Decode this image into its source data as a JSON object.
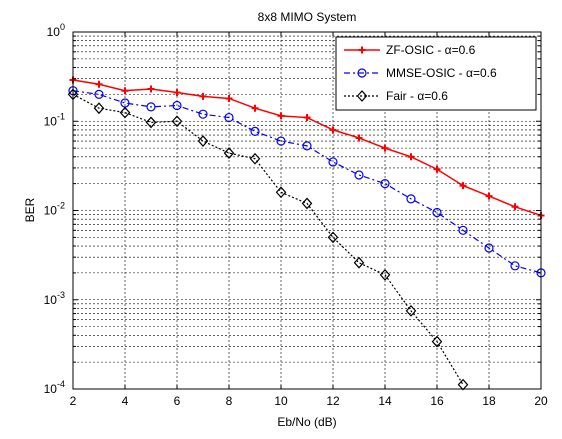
{
  "chart_data": {
    "type": "line",
    "title": "8x8 MIMO System",
    "xlabel": "Eb/No (dB)",
    "ylabel": "BER",
    "xlim": [
      2,
      20
    ],
    "ylim": [
      0.0001,
      1
    ],
    "yscale": "log",
    "grid": true,
    "legend_position": "top-right",
    "x_ticks": [
      "2",
      "4",
      "6",
      "8",
      "10",
      "12",
      "14",
      "16",
      "18",
      "20"
    ],
    "y_ticks": [
      {
        "base": "10",
        "exp": "0"
      },
      {
        "base": "10",
        "exp": "-1"
      },
      {
        "base": "10",
        "exp": "-2"
      },
      {
        "base": "10",
        "exp": "-3"
      },
      {
        "base": "10",
        "exp": "-4"
      }
    ],
    "x": [
      2,
      3,
      4,
      5,
      6,
      7,
      8,
      9,
      10,
      11,
      12,
      13,
      14,
      15,
      16,
      17,
      18,
      19,
      20
    ],
    "series": [
      {
        "name": "ZF-OSIC - α=0.6",
        "name_prefix": "ZF-OSIC - ",
        "name_symbol": "α",
        "name_suffix": "=0.6",
        "color": "#ff0000",
        "line_style": "solid",
        "marker": "plus",
        "values": [
          0.29,
          0.26,
          0.22,
          0.23,
          0.21,
          0.19,
          0.18,
          0.14,
          0.115,
          0.11,
          0.08,
          0.065,
          0.05,
          0.04,
          0.029,
          0.019,
          0.0145,
          0.011,
          0.0088
        ]
      },
      {
        "name": "MMSE-OSIC - α=0.6",
        "name_prefix": "MMSE-OSIC - ",
        "name_symbol": "α",
        "name_suffix": "=0.6",
        "color": "#0000ff",
        "line_style": "dashdot",
        "marker": "circle",
        "values": [
          0.22,
          0.2,
          0.16,
          0.145,
          0.15,
          0.12,
          0.11,
          0.077,
          0.06,
          0.053,
          0.035,
          0.025,
          0.02,
          0.0135,
          0.0095,
          0.006,
          0.0038,
          0.0024,
          0.002
        ]
      },
      {
        "name": "Fair - α=0.6",
        "name_prefix": "Fair - ",
        "name_symbol": "α",
        "name_suffix": "=0.6",
        "color": "#000000",
        "line_style": "dotted",
        "marker": "diamond",
        "values": [
          0.2,
          0.14,
          0.125,
          0.097,
          0.1,
          0.06,
          0.044,
          0.038,
          0.016,
          0.012,
          0.005,
          0.0026,
          0.0019,
          0.00075,
          0.00034,
          0.000112,
          null,
          null,
          null
        ]
      }
    ]
  }
}
